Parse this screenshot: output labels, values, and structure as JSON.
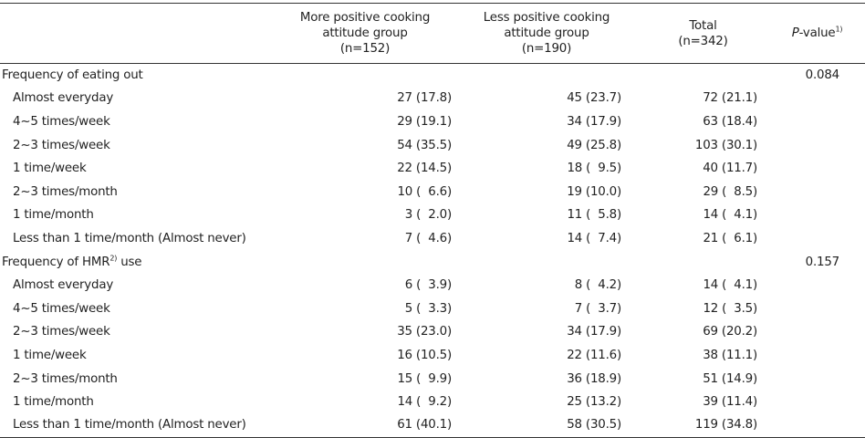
{
  "header": {
    "col_label": "",
    "col1": [
      "More positive cooking",
      "attitude group",
      "(n=152)"
    ],
    "col2": [
      "Less positive cooking",
      "attitude group",
      "(n=190)"
    ],
    "col3": [
      "Total",
      "(n=342)"
    ],
    "col4_italic": "P",
    "col4_rest": "-value",
    "col4_sup": "1)"
  },
  "sections": [
    {
      "title": "Frequency of eating out",
      "title_sup": "",
      "title_after": "",
      "p_value": "0.084",
      "rows": [
        {
          "label": "Almost everyday",
          "more": "27 (17.8)",
          "less": "45 (23.7)",
          "total": "72 (21.1)"
        },
        {
          "label": "4~5 times/week",
          "more": "29 (19.1)",
          "less": "34 (17.9)",
          "total": "63 (18.4)"
        },
        {
          "label": "2~3 times/week",
          "more": "54 (35.5)",
          "less": "49 (25.8)",
          "total": "103 (30.1)"
        },
        {
          "label": "1 time/week",
          "more": "22 (14.5)",
          "less": "18 (  9.5)",
          "total": "40 (11.7)"
        },
        {
          "label": "2~3 times/month",
          "more": "10 (  6.6)",
          "less": "19 (10.0)",
          "total": "29 (  8.5)"
        },
        {
          "label": "1 time/month",
          "more": "3 (  2.0)",
          "less": "11 (  5.8)",
          "total": "14 (  4.1)"
        },
        {
          "label": "Less than 1 time/month (Almost never)",
          "more": "7 (  4.6)",
          "less": "14 (  7.4)",
          "total": "21 (  6.1)"
        }
      ]
    },
    {
      "title": "Frequency of HMR",
      "title_sup": "2)",
      "title_after": " use",
      "p_value": "0.157",
      "rows": [
        {
          "label": "Almost everyday",
          "more": "6 (  3.9)",
          "less": "8 (  4.2)",
          "total": "14 (  4.1)"
        },
        {
          "label": "4~5 times/week",
          "more": "5 (  3.3)",
          "less": "7 (  3.7)",
          "total": "12 (  3.5)"
        },
        {
          "label": "2~3 times/week",
          "more": "35 (23.0)",
          "less": "34 (17.9)",
          "total": "69 (20.2)"
        },
        {
          "label": "1 time/week",
          "more": "16 (10.5)",
          "less": "22 (11.6)",
          "total": "38 (11.1)"
        },
        {
          "label": "2~3 times/month",
          "more": "15 (  9.9)",
          "less": "36 (18.9)",
          "total": "51 (14.9)"
        },
        {
          "label": "1 time/month",
          "more": "14 (  9.2)",
          "less": "25 (13.2)",
          "total": "39 (11.4)"
        },
        {
          "label": "Less than 1 time/month (Almost never)",
          "more": "61 (40.1)",
          "less": "58 (30.5)",
          "total": "119 (34.8)"
        }
      ]
    }
  ]
}
